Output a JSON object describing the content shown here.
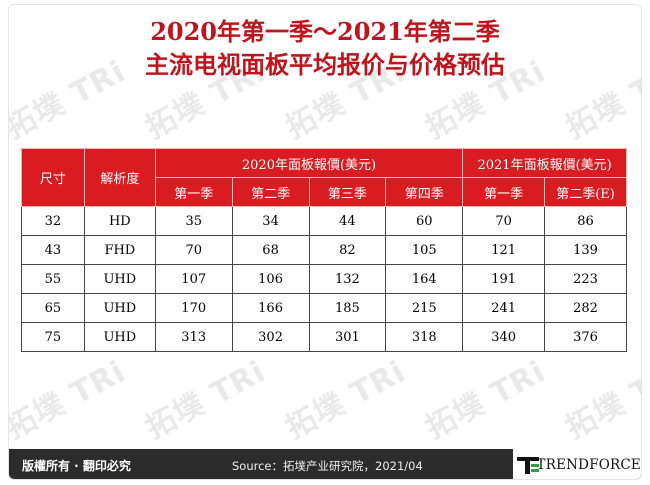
{
  "title": {
    "line1": "2020年第一季～2021年第二季",
    "line2": "主流电视面板平均报价与价格预估"
  },
  "table": {
    "header": {
      "size": "尺寸",
      "resolution": "解析度",
      "group2020": "2020年面板報價(美元)",
      "group2021": "2021年面板報價(美元)",
      "quarters2020": [
        "第一季",
        "第二季",
        "第三季",
        "第四季"
      ],
      "quarters2021": [
        "第一季",
        "第二季(E)"
      ]
    },
    "rows": [
      [
        "32",
        "HD",
        "35",
        "34",
        "44",
        "60",
        "70",
        "86"
      ],
      [
        "43",
        "FHD",
        "70",
        "68",
        "82",
        "105",
        "121",
        "139"
      ],
      [
        "55",
        "UHD",
        "107",
        "106",
        "132",
        "164",
        "191",
        "223"
      ],
      [
        "65",
        "UHD",
        "170",
        "166",
        "185",
        "215",
        "241",
        "282"
      ],
      [
        "75",
        "UHD",
        "313",
        "302",
        "301",
        "318",
        "340",
        "376"
      ]
    ]
  },
  "footer": {
    "copyright": "版權所有 · 翻印必究",
    "source": "Source：拓墣产业研究院，2021/04"
  },
  "brand": {
    "name": "TRENDFORCE",
    "icon": "trendforce-logo-icon"
  },
  "watermark": {
    "icon": "tri-watermark-logo"
  },
  "colors": {
    "title": "#c0141c",
    "header_bg": "#d91c22",
    "footer_bg": "#2c2c2c"
  }
}
